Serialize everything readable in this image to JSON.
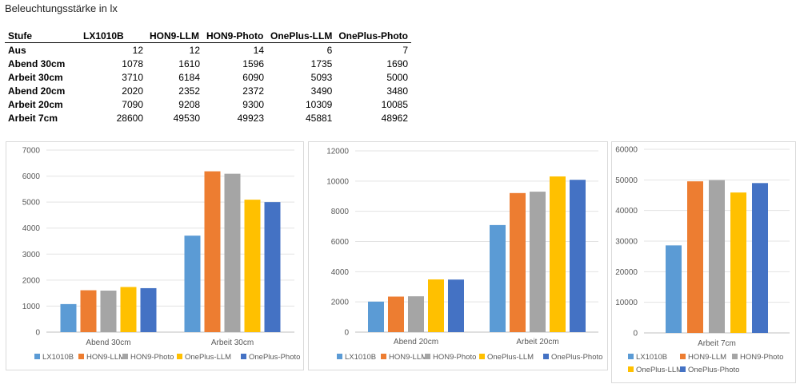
{
  "heading": "Beleuchtungsstärke in lx",
  "table": {
    "headers": [
      "Stufe",
      "LX1010B",
      "HON9-LLM",
      "HON9-Photo",
      "OnePlus-LLM",
      "OnePlus-Photo"
    ],
    "rows": [
      {
        "label": "Aus",
        "values": [
          "12",
          "12",
          "14",
          "6",
          "7"
        ]
      },
      {
        "label": "Abend 30cm",
        "values": [
          "1078",
          "1610",
          "1596",
          "1735",
          "1690"
        ]
      },
      {
        "label": "Arbeit 30cm",
        "values": [
          "3710",
          "6184",
          "6090",
          "5093",
          "5000"
        ]
      },
      {
        "label": "Abend 20cm",
        "values": [
          "2020",
          "2352",
          "2372",
          "3490",
          "3480"
        ]
      },
      {
        "label": "Arbeit 20cm",
        "values": [
          "7090",
          "9208",
          "9300",
          "10309",
          "10085"
        ]
      },
      {
        "label": "Arbeit 7cm",
        "values": [
          "28600",
          "49530",
          "49923",
          "45881",
          "48962"
        ]
      }
    ]
  },
  "chart_data": [
    {
      "type": "bar",
      "categories": [
        "Abend 30cm",
        "Arbeit 30cm"
      ],
      "ylim": [
        0,
        7000
      ],
      "yticks": [
        0,
        1000,
        2000,
        3000,
        4000,
        5000,
        6000,
        7000
      ],
      "grid": true,
      "legend_position": "bottom",
      "series": [
        {
          "name": "LX1010B",
          "color": "#5b9bd5",
          "values": [
            1078,
            3710
          ]
        },
        {
          "name": "HON9-LLM",
          "color": "#ed7d31",
          "values": [
            1610,
            6184
          ]
        },
        {
          "name": "HON9-Photo",
          "color": "#a5a5a5",
          "values": [
            1596,
            6090
          ]
        },
        {
          "name": "OnePlus-LLM",
          "color": "#ffc000",
          "values": [
            1735,
            5093
          ]
        },
        {
          "name": "OnePlus-Photo",
          "color": "#4472c4",
          "values": [
            1690,
            5000
          ]
        }
      ]
    },
    {
      "type": "bar",
      "categories": [
        "Abend 20cm",
        "Arbeit 20cm"
      ],
      "ylim": [
        0,
        12000
      ],
      "yticks": [
        0,
        2000,
        4000,
        6000,
        8000,
        10000,
        12000
      ],
      "grid": true,
      "legend_position": "bottom",
      "series": [
        {
          "name": "LX1010B",
          "color": "#5b9bd5",
          "values": [
            2020,
            7090
          ]
        },
        {
          "name": "HON9-LLM",
          "color": "#ed7d31",
          "values": [
            2352,
            9208
          ]
        },
        {
          "name": "HON9-Photo",
          "color": "#a5a5a5",
          "values": [
            2372,
            9300
          ]
        },
        {
          "name": "OnePlus-LLM",
          "color": "#ffc000",
          "values": [
            3490,
            10309
          ]
        },
        {
          "name": "OnePlus-Photo",
          "color": "#4472c4",
          "values": [
            3480,
            10085
          ]
        }
      ]
    },
    {
      "type": "bar",
      "categories": [
        "Arbeit 7cm"
      ],
      "ylim": [
        0,
        60000
      ],
      "yticks": [
        0,
        10000,
        20000,
        30000,
        40000,
        50000,
        60000
      ],
      "grid": true,
      "legend_position": "bottom",
      "series": [
        {
          "name": "LX1010B",
          "color": "#5b9bd5",
          "values": [
            28600
          ]
        },
        {
          "name": "HON9-LLM",
          "color": "#ed7d31",
          "values": [
            49530
          ]
        },
        {
          "name": "HON9-Photo",
          "color": "#a5a5a5",
          "values": [
            49923
          ]
        },
        {
          "name": "OnePlus-LLM",
          "color": "#ffc000",
          "values": [
            45881
          ]
        },
        {
          "name": "OnePlus-Photo",
          "color": "#4472c4",
          "values": [
            48962
          ]
        }
      ]
    }
  ]
}
